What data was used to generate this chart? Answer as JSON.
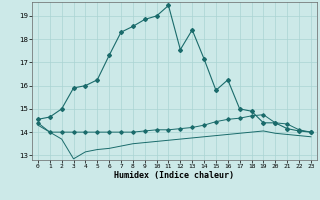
{
  "title": "",
  "xlabel": "Humidex (Indice chaleur)",
  "xlim": [
    -0.5,
    23.5
  ],
  "ylim": [
    12.8,
    19.6
  ],
  "yticks": [
    13,
    14,
    15,
    16,
    17,
    18,
    19
  ],
  "xticks": [
    0,
    1,
    2,
    3,
    4,
    5,
    6,
    7,
    8,
    9,
    10,
    11,
    12,
    13,
    14,
    15,
    16,
    17,
    18,
    19,
    20,
    21,
    22,
    23
  ],
  "bg_color": "#cce9e8",
  "grid_color": "#aad4d3",
  "line_color": "#1a6b6b",
  "line1_x": [
    0,
    1,
    2,
    3,
    4,
    5,
    6,
    7,
    8,
    9,
    10,
    11,
    12,
    13,
    14,
    15,
    16,
    17,
    18,
    19,
    20,
    21,
    22,
    23
  ],
  "line1_y": [
    14.55,
    14.65,
    15.0,
    15.9,
    16.0,
    16.25,
    17.3,
    18.3,
    18.55,
    18.85,
    19.0,
    19.45,
    17.55,
    18.4,
    17.15,
    15.8,
    16.25,
    15.0,
    14.9,
    14.4,
    14.4,
    14.15,
    14.05,
    14.0
  ],
  "line2_x": [
    0,
    1,
    2,
    3,
    4,
    5,
    6,
    7,
    8,
    9,
    10,
    11,
    12,
    13,
    14,
    15,
    16,
    17,
    18,
    19,
    20,
    21,
    22,
    23
  ],
  "line2_y": [
    14.4,
    14.0,
    14.0,
    14.0,
    14.0,
    14.0,
    14.0,
    14.0,
    14.0,
    14.05,
    14.1,
    14.1,
    14.15,
    14.2,
    14.3,
    14.45,
    14.55,
    14.6,
    14.7,
    14.75,
    14.4,
    14.35,
    14.1,
    14.0
  ],
  "line3_x": [
    0,
    1,
    2,
    3,
    4,
    5,
    6,
    7,
    8,
    9,
    10,
    11,
    12,
    13,
    14,
    15,
    16,
    17,
    18,
    19,
    20,
    21,
    22,
    23
  ],
  "line3_y": [
    14.3,
    14.0,
    13.7,
    12.85,
    13.15,
    13.25,
    13.3,
    13.4,
    13.5,
    13.55,
    13.6,
    13.65,
    13.7,
    13.75,
    13.8,
    13.85,
    13.9,
    13.95,
    14.0,
    14.05,
    13.95,
    13.9,
    13.85,
    13.8
  ]
}
